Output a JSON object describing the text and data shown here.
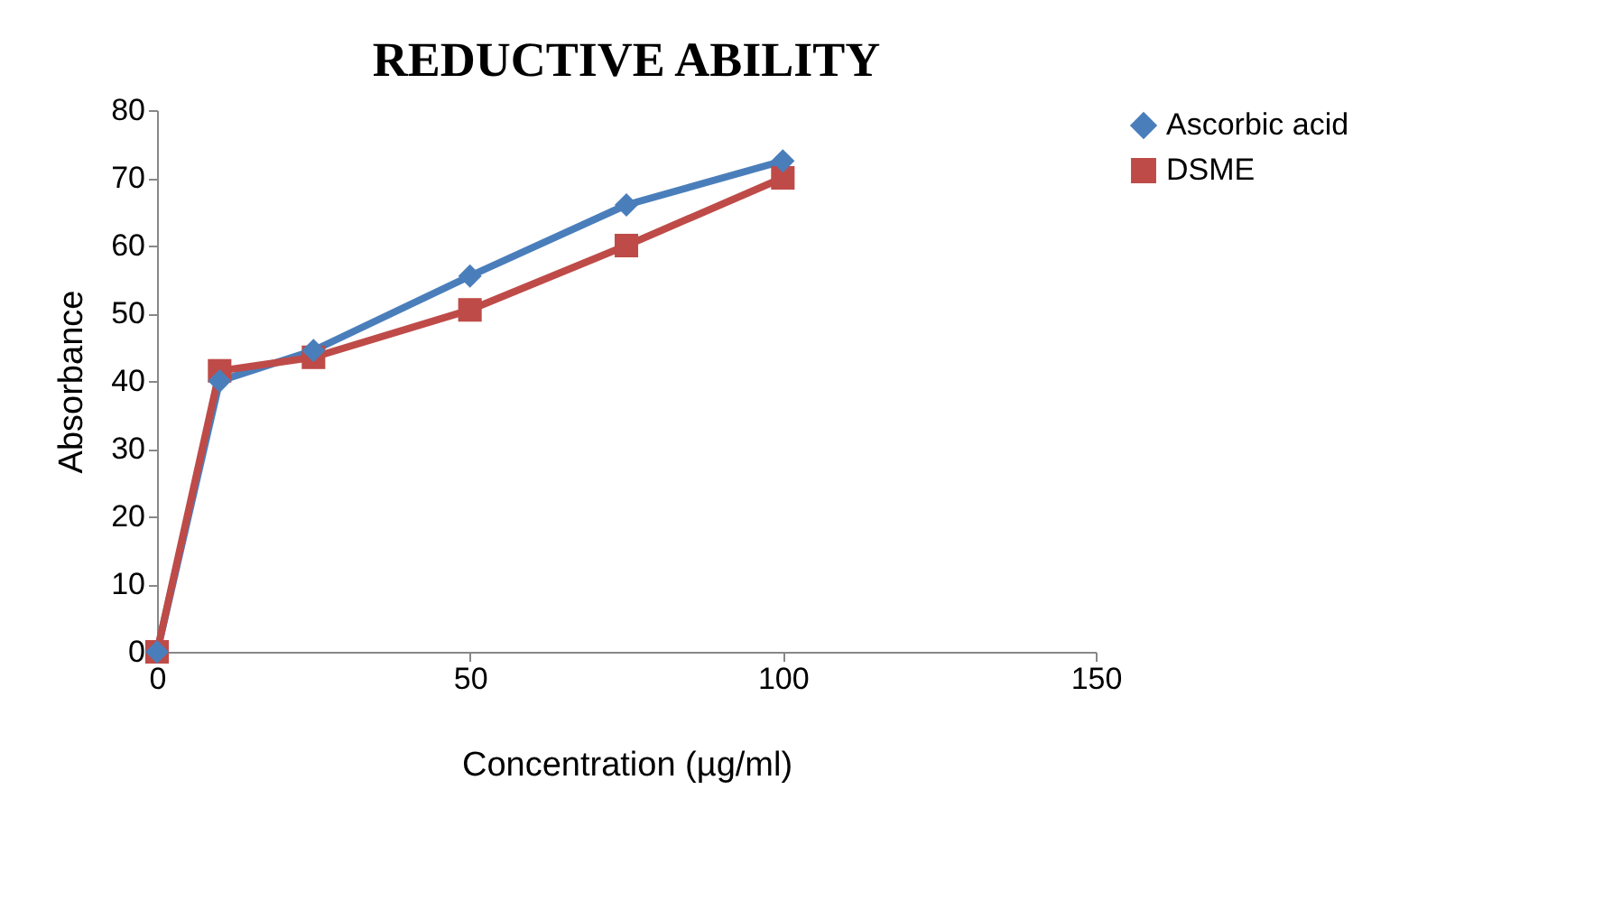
{
  "chart_data": {
    "type": "line",
    "title": "REDUCTIVE  ABILITY",
    "xlabel": "Concentration (µg/ml)",
    "ylabel": "Absorbance",
    "x": [
      0,
      10,
      25,
      50,
      75,
      100
    ],
    "series": [
      {
        "name": "Ascorbic acid",
        "color": "#4a7ebb",
        "marker": "diamond",
        "values": [
          0,
          40,
          44.5,
          55.5,
          66,
          72.5
        ]
      },
      {
        "name": "DSME",
        "color": "#be4b48",
        "marker": "square",
        "values": [
          0,
          41.5,
          43.5,
          50.5,
          60,
          70
        ]
      }
    ],
    "xlim": [
      0,
      150
    ],
    "xticks": [
      0,
      50,
      100,
      150
    ],
    "ylim": [
      0,
      80
    ],
    "yticks": [
      0,
      10,
      20,
      30,
      40,
      50,
      60,
      70,
      80
    ],
    "grid": false,
    "legend": "right",
    "line_style": "solid"
  }
}
